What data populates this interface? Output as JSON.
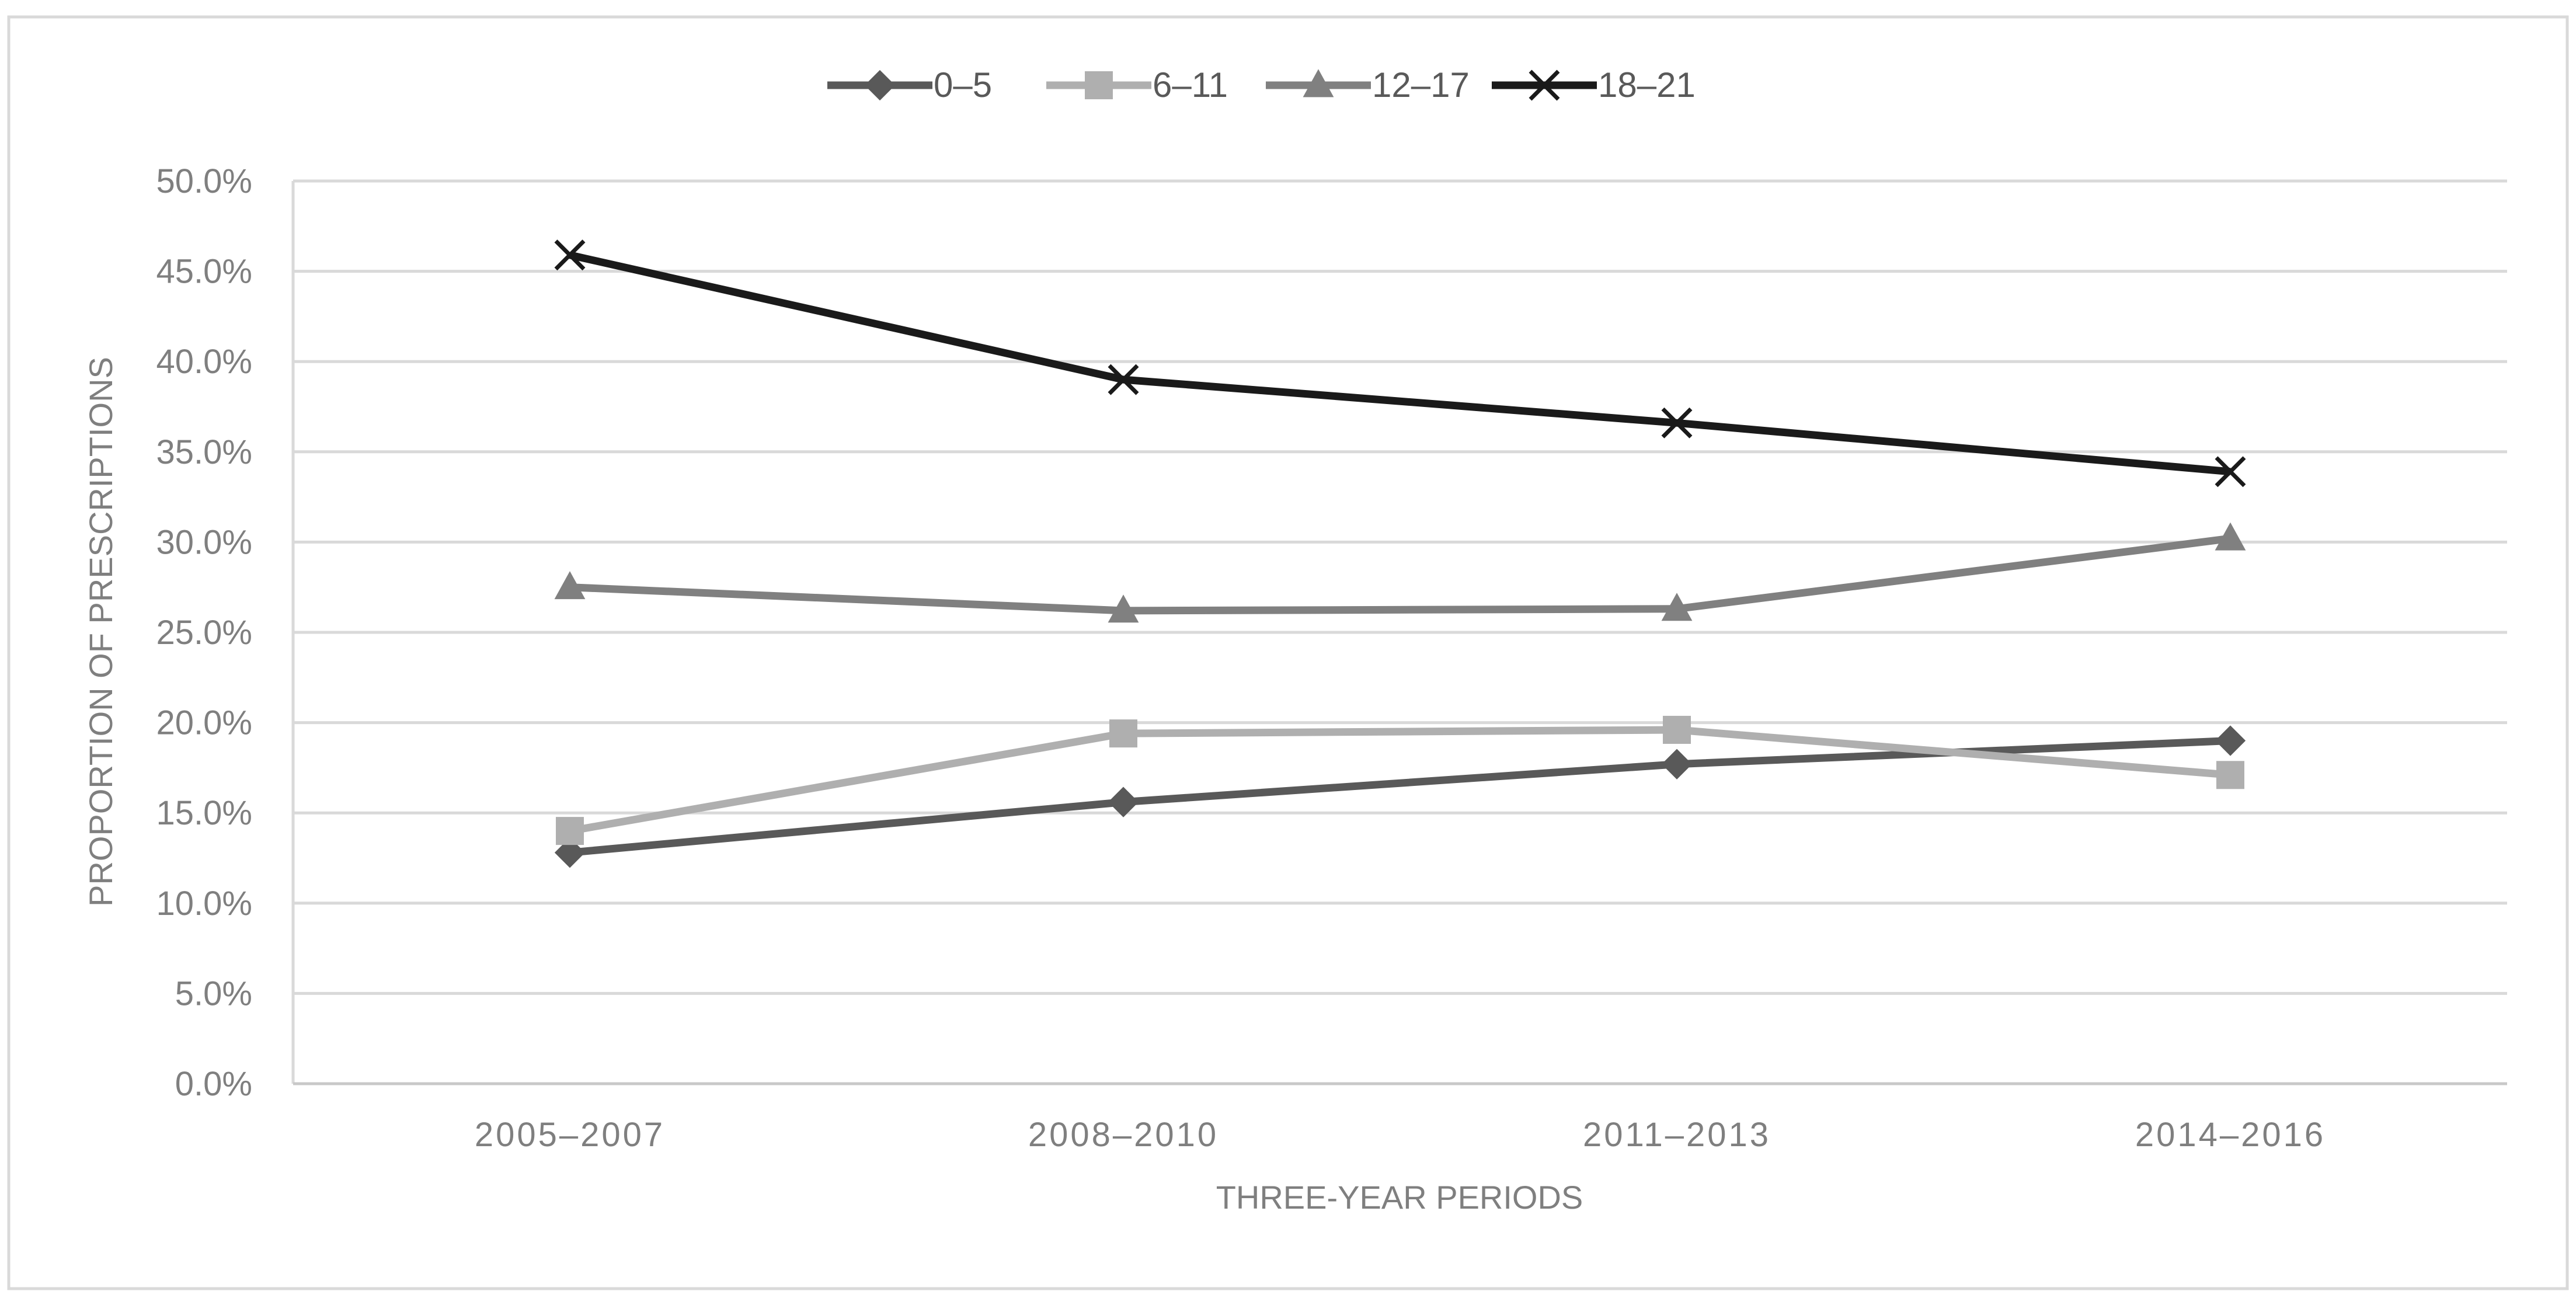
{
  "chart_data": {
    "type": "line",
    "title": "",
    "xlabel": "THREE-YEAR PERIODS",
    "ylabel": "PROPORTION OF  PRESCRIPTIONS",
    "categories": [
      "2005–2007",
      "2008–2010",
      "2011–2013",
      "2014–2016"
    ],
    "ylim": [
      0,
      50
    ],
    "y_ticks": [
      "0.0%",
      "5.0%",
      "10.0%",
      "15.0%",
      "20.0%",
      "25.0%",
      "30.0%",
      "35.0%",
      "40.0%",
      "45.0%",
      "50.0%"
    ],
    "y_unit": "percent",
    "grid": true,
    "legend_position": "top",
    "series": [
      {
        "name": "0–5",
        "values": [
          12.8,
          15.6,
          17.7,
          19.0
        ],
        "color": "#595959",
        "marker": "diamond"
      },
      {
        "name": "6–11",
        "values": [
          14.0,
          19.4,
          19.6,
          17.1
        ],
        "color": "#afafaf",
        "marker": "square"
      },
      {
        "name": "12–17",
        "values": [
          27.5,
          26.2,
          26.3,
          30.2
        ],
        "color": "#808080",
        "marker": "triangle"
      },
      {
        "name": "18–21",
        "values": [
          45.9,
          39.0,
          36.6,
          33.9
        ],
        "color": "#1a1a1a",
        "marker": "x"
      }
    ]
  }
}
